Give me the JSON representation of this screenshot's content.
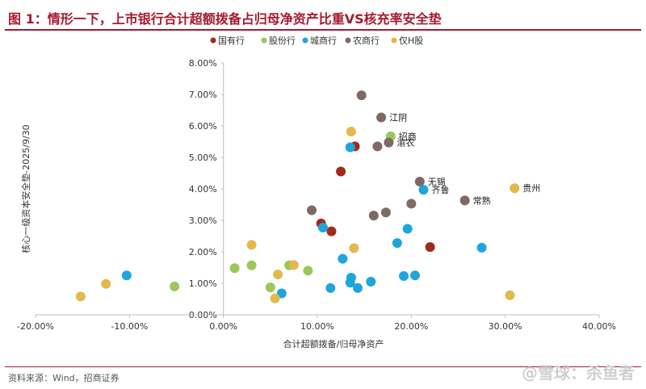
{
  "title": "图 1：情形一下，上市银行合计超额拨备占归母净资产比重VS核充率安全垫",
  "source": "资料来源：Wind，招商证券",
  "watermark": "@雪球：杀鱼者",
  "chart_data": {
    "type": "scatter",
    "xlabel": "合计超额拨备/归母净资产",
    "ylabel": "核心一级资本安全垫-2025/9/30",
    "xlim": [
      -0.2,
      0.4
    ],
    "ylim": [
      0,
      0.08
    ],
    "xticks": [
      -0.2,
      -0.1,
      0.0,
      0.1,
      0.2,
      0.3,
      0.4
    ],
    "yticks": [
      0,
      0.01,
      0.02,
      0.03,
      0.04,
      0.05,
      0.06,
      0.07,
      0.08
    ],
    "x_tick_labels": [
      "-20.00%",
      "-10.00%",
      "0.00%",
      "10.00%",
      "20.00%",
      "30.00%",
      "40.00%"
    ],
    "y_tick_labels": [
      "0.00%",
      "1.00%",
      "2.00%",
      "3.00%",
      "4.00%",
      "5.00%",
      "6.00%",
      "7.00%",
      "8.00%"
    ],
    "legend_position": "top",
    "series": [
      {
        "name": "国有行",
        "color": "#a3291b",
        "points": [
          [
            0.14,
            0.0535
          ],
          [
            0.125,
            0.0455
          ],
          [
            0.104,
            0.029
          ],
          [
            0.115,
            0.0265
          ],
          [
            0.22,
            0.0215
          ]
        ]
      },
      {
        "name": "股份行",
        "color": "#9bc85b",
        "points": [
          [
            0.178,
            0.0567
          ],
          [
            -0.052,
            0.009
          ],
          [
            0.012,
            0.0148
          ],
          [
            0.03,
            0.0157
          ],
          [
            0.07,
            0.0157
          ],
          [
            0.09,
            0.014
          ],
          [
            0.05,
            0.0087
          ]
        ]
      },
      {
        "name": "城商行",
        "color": "#1ea6dc",
        "points": [
          [
            0.135,
            0.0532
          ],
          [
            0.213,
            0.0397
          ],
          [
            0.275,
            0.0213
          ],
          [
            -0.103,
            0.0125
          ],
          [
            0.106,
            0.0277
          ],
          [
            0.196,
            0.0273
          ],
          [
            0.185,
            0.0228
          ],
          [
            0.127,
            0.0178
          ],
          [
            0.136,
            0.0118
          ],
          [
            0.135,
            0.0102
          ],
          [
            0.157,
            0.0105
          ],
          [
            0.192,
            0.0123
          ],
          [
            0.204,
            0.0125
          ],
          [
            0.114,
            0.0085
          ],
          [
            0.143,
            0.0085
          ],
          [
            0.062,
            0.0068
          ]
        ]
      },
      {
        "name": "农商行",
        "color": "#7f6a63",
        "points": [
          [
            0.147,
            0.0697
          ],
          [
            0.168,
            0.0627
          ],
          [
            0.164,
            0.0535
          ],
          [
            0.176,
            0.0547
          ],
          [
            0.209,
            0.0423
          ],
          [
            0.257,
            0.0363
          ],
          [
            0.2,
            0.0353
          ],
          [
            0.094,
            0.0332
          ],
          [
            0.173,
            0.0325
          ],
          [
            0.16,
            0.0315
          ]
        ]
      },
      {
        "name": "仅H股",
        "color": "#e3b94b",
        "points": [
          [
            0.136,
            0.0582
          ],
          [
            0.31,
            0.0402
          ],
          [
            0.03,
            0.0222
          ],
          [
            0.139,
            0.0212
          ],
          [
            0.075,
            0.0158
          ],
          [
            0.058,
            0.0128
          ],
          [
            -0.125,
            0.0098
          ],
          [
            -0.152,
            0.0058
          ],
          [
            0.055,
            0.0052
          ],
          [
            0.305,
            0.0062
          ]
        ]
      }
    ],
    "annotations": [
      {
        "text": "江阴",
        "x": 0.168,
        "y": 0.0627
      },
      {
        "text": "招商",
        "x": 0.178,
        "y": 0.0567
      },
      {
        "text": "渝农",
        "x": 0.176,
        "y": 0.0547
      },
      {
        "text": "无锡",
        "x": 0.209,
        "y": 0.0423
      },
      {
        "text": "齐鲁",
        "x": 0.213,
        "y": 0.0397
      },
      {
        "text": "常熟",
        "x": 0.257,
        "y": 0.0363
      },
      {
        "text": "贵州",
        "x": 0.31,
        "y": 0.0402
      }
    ]
  }
}
